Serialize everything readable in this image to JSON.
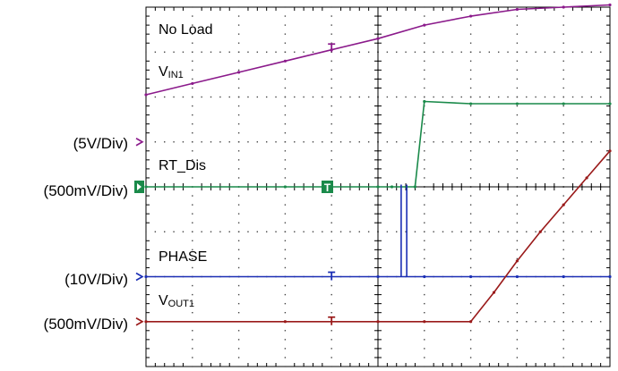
{
  "chart_data": {
    "type": "line",
    "title": "",
    "grid": true,
    "divisions": {
      "x": 10,
      "y": 8
    },
    "x_range_div": [
      0,
      10
    ],
    "y_range_div": [
      0,
      8
    ],
    "annotations": {
      "condition": "No Load",
      "vin_label": "V",
      "vin_sub": "IN1",
      "rt_label": "RT_Dis",
      "phase_label": "PHASE",
      "vout_label": "V",
      "vout_sub": "OUT1"
    },
    "channels": [
      {
        "name": "VIN1",
        "scale": "(5V/Div)",
        "color": "#8b1a8b",
        "marker": "arrow",
        "ground_div": 5.0
      },
      {
        "name": "RT_Dis",
        "scale": "(500mV/Div)",
        "color": "#1a8a4a",
        "marker": "box",
        "ground_div": 4.0
      },
      {
        "name": "PHASE",
        "scale": "(10V/Div)",
        "color": "#1a2eb4",
        "marker": "arrow",
        "ground_div": 2.0
      },
      {
        "name": "VOUT1",
        "scale": "(500mV/Div)",
        "color": "#9a1a1a",
        "marker": "arrow",
        "ground_div": 1.0
      }
    ],
    "series": [
      {
        "name": "VIN1",
        "x": [
          0,
          1,
          2,
          3,
          4,
          5,
          6,
          7,
          8,
          9,
          10
        ],
        "y": [
          6.05,
          6.3,
          6.55,
          6.8,
          7.05,
          7.3,
          7.6,
          7.8,
          7.95,
          8.0,
          8.05
        ]
      },
      {
        "name": "RT_Dis",
        "x": [
          0,
          3,
          5.0,
          5.3,
          5.8,
          6.0,
          7,
          8,
          9,
          10
        ],
        "y": [
          4.0,
          4.0,
          4.0,
          4.0,
          4.0,
          5.9,
          5.85,
          5.85,
          5.85,
          5.85
        ]
      },
      {
        "name": "PHASE",
        "x": [
          0,
          5,
          6,
          7,
          8,
          9,
          10
        ],
        "y": [
          2.0,
          2.0,
          2.0,
          2.0,
          2.0,
          2.0,
          2.0
        ]
      },
      {
        "name": "VOUT1",
        "x": [
          0,
          3,
          5,
          6,
          7,
          7.5,
          8,
          8.5,
          9,
          9.5,
          10
        ],
        "y": [
          1.0,
          1.0,
          1.0,
          1.0,
          1.0,
          1.65,
          2.35,
          3.0,
          3.6,
          4.2,
          4.8
        ]
      }
    ]
  }
}
